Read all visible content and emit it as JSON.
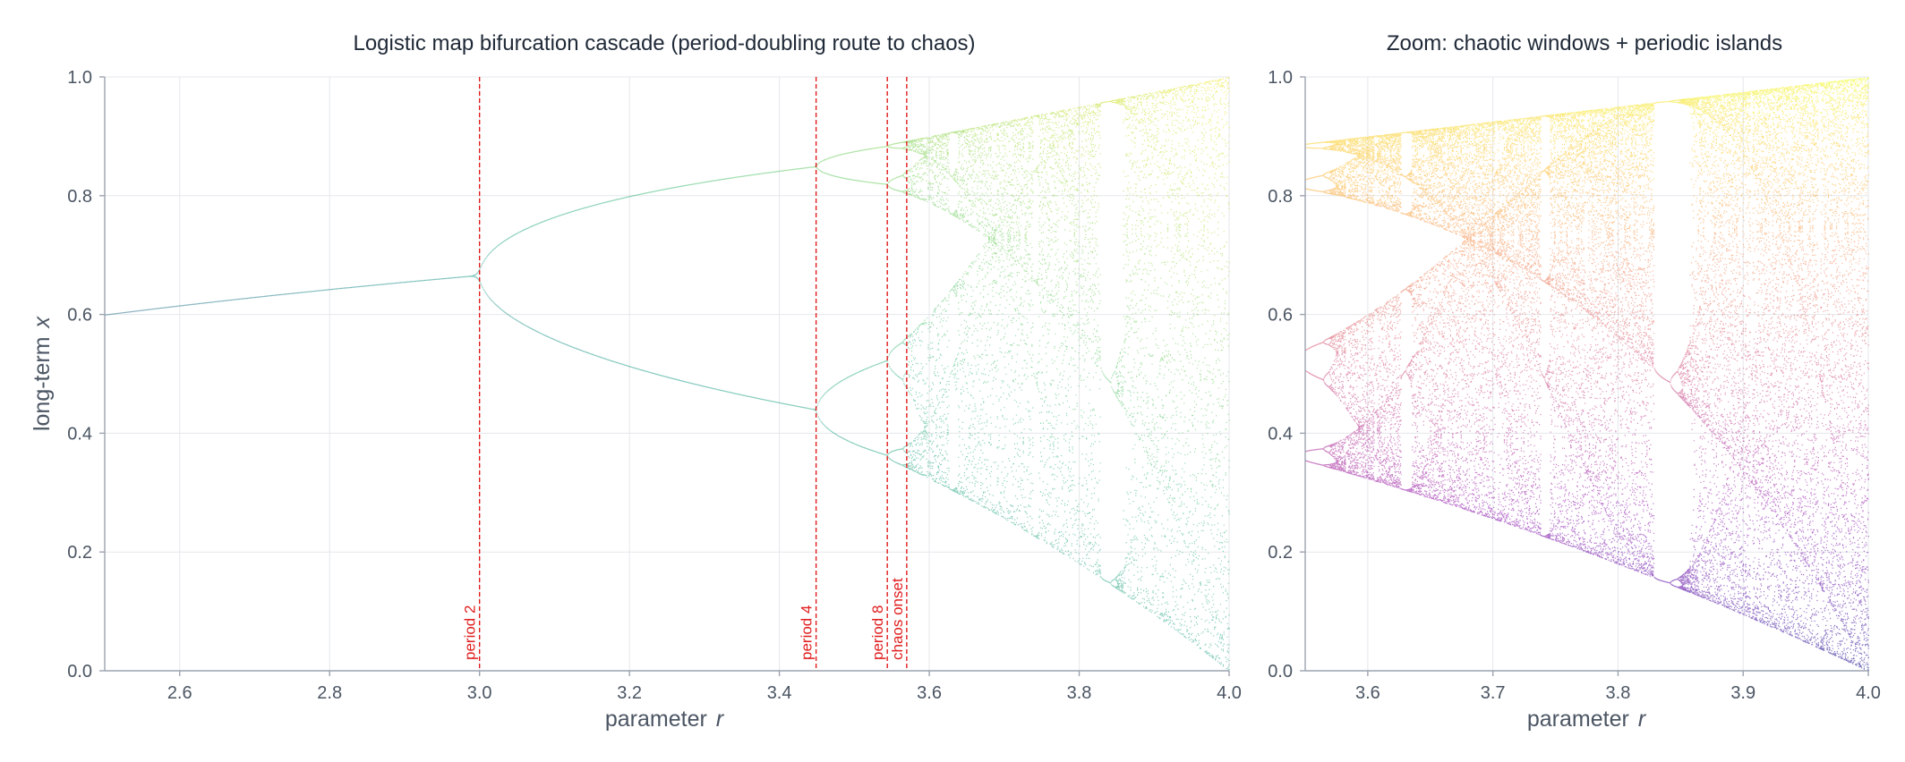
{
  "chart_data": [
    {
      "type": "scatter",
      "title": "Logistic map bifurcation cascade  (period-doubling route to chaos)",
      "xlabel": "parameter",
      "xlabel_var": "r",
      "ylabel": "long-term",
      "ylabel_var": "x",
      "xlim": [
        2.5,
        4.0
      ],
      "ylim": [
        0.0,
        1.0
      ],
      "xticks": [
        "2.6",
        "2.8",
        "3.0",
        "3.2",
        "3.4",
        "3.6",
        "3.8",
        "4.0"
      ],
      "yticks": [
        "0.0",
        "0.2",
        "0.4",
        "0.6",
        "0.8",
        "1.0"
      ],
      "grid": true,
      "colormap": "viridis",
      "annotations": [
        {
          "x": 3.0,
          "label": "period 2"
        },
        {
          "x": 3.449,
          "label": "period 4"
        },
        {
          "x": 3.544,
          "label": "period 8"
        },
        {
          "x": 3.5699,
          "label": "chaos onset"
        }
      ],
      "annotation_color": "#e11d1d"
    },
    {
      "type": "scatter",
      "title": "Zoom: chaotic windows + periodic islands",
      "xlabel": "parameter",
      "xlabel_var": "r",
      "xlim": [
        3.55,
        4.0
      ],
      "ylim": [
        0.0,
        1.0
      ],
      "xticks": [
        "3.6",
        "3.7",
        "3.8",
        "3.9",
        "4.0"
      ],
      "yticks": [
        "0.0",
        "0.2",
        "0.4",
        "0.6",
        "0.8",
        "1.0"
      ],
      "grid": true,
      "colormap": "plasma"
    }
  ]
}
